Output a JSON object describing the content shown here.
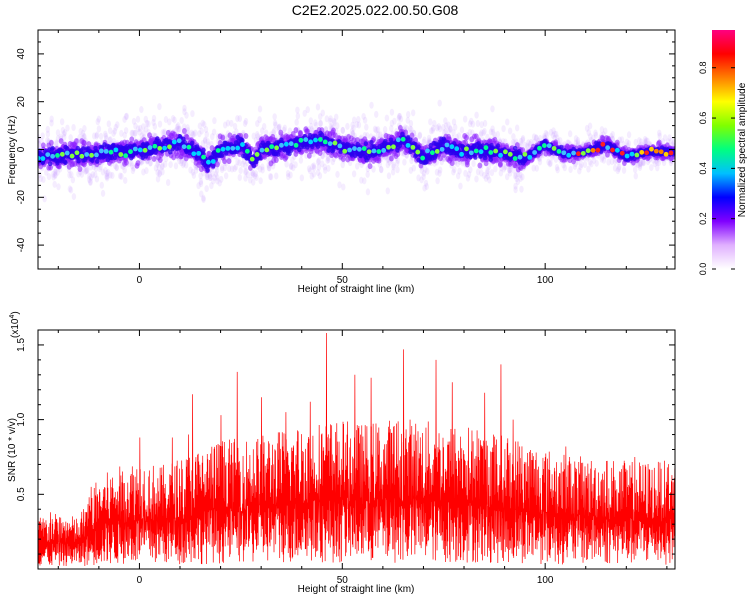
{
  "title": "C2E2.2025.022.00.50.G08",
  "chart_data": [
    {
      "type": "heatmap",
      "xlabel": "Height of straight line (km)",
      "ylabel": "Frequency (Hz)",
      "xlim": [
        -25,
        132
      ],
      "ylim": [
        -50,
        50
      ],
      "xticks": [
        0,
        50,
        100
      ],
      "yticks": [
        -40,
        -20,
        0,
        20,
        40
      ],
      "colorbar": {
        "label": "Normalized spectral amplitude",
        "range": [
          0.0,
          0.95
        ],
        "ticks": [
          0.0,
          0.2,
          0.4,
          0.6,
          0.8
        ],
        "colormap": [
          "#ffffff",
          "#e0b0ff",
          "#8000ff",
          "#0000ff",
          "#00c0ff",
          "#00ff80",
          "#80ff00",
          "#ffff00",
          "#ff8000",
          "#ff0000",
          "#ff0080"
        ]
      },
      "ridge_center_hz": [
        [
          -25,
          -3
        ],
        [
          -15,
          -2
        ],
        [
          -5,
          -1
        ],
        [
          0,
          0
        ],
        [
          5,
          1
        ],
        [
          10,
          3
        ],
        [
          15,
          -2
        ],
        [
          17,
          -6
        ],
        [
          20,
          0
        ],
        [
          25,
          2
        ],
        [
          28,
          -5
        ],
        [
          30,
          0
        ],
        [
          35,
          1
        ],
        [
          40,
          3
        ],
        [
          45,
          4
        ],
        [
          50,
          1
        ],
        [
          55,
          -1
        ],
        [
          60,
          0
        ],
        [
          65,
          4
        ],
        [
          70,
          -3
        ],
        [
          75,
          2
        ],
        [
          80,
          -1
        ],
        [
          85,
          0
        ],
        [
          90,
          -2
        ],
        [
          95,
          -4
        ],
        [
          100,
          2
        ],
        [
          105,
          -2
        ],
        [
          110,
          -1
        ],
        [
          115,
          2
        ],
        [
          120,
          -3
        ],
        [
          125,
          -1
        ],
        [
          132,
          -1
        ]
      ]
    },
    {
      "type": "line",
      "xlabel": "Height of straight line (km)",
      "ylabel": "SNR (10 * v/v)",
      "yscale_note": "(x10",
      "yscale_exp": "4",
      "xlim": [
        -25,
        132
      ],
      "ylim": [
        0,
        1.6
      ],
      "xticks": [
        0,
        50,
        100
      ],
      "yticks": [
        0.5,
        1.0,
        1.5
      ],
      "ytick_labels": [
        "0.5",
        "1.0",
        "1.5"
      ],
      "series": [
        {
          "color": "#ff0000",
          "envelope": [
            [
              -25,
              0.28
            ],
            [
              -20,
              0.3
            ],
            [
              -15,
              0.28
            ],
            [
              -10,
              0.5
            ],
            [
              -5,
              0.55
            ],
            [
              0,
              0.6
            ],
            [
              5,
              0.55
            ],
            [
              10,
              0.6
            ],
            [
              15,
              0.65
            ],
            [
              20,
              0.7
            ],
            [
              25,
              0.7
            ],
            [
              30,
              0.72
            ],
            [
              35,
              0.75
            ],
            [
              40,
              0.78
            ],
            [
              45,
              0.8
            ],
            [
              50,
              0.8
            ],
            [
              55,
              0.78
            ],
            [
              60,
              0.8
            ],
            [
              65,
              0.82
            ],
            [
              70,
              0.8
            ],
            [
              75,
              0.78
            ],
            [
              80,
              0.78
            ],
            [
              85,
              0.75
            ],
            [
              90,
              0.72
            ],
            [
              95,
              0.7
            ],
            [
              100,
              0.65
            ],
            [
              105,
              0.62
            ],
            [
              110,
              0.6
            ],
            [
              115,
              0.6
            ],
            [
              120,
              0.58
            ],
            [
              125,
              0.58
            ],
            [
              132,
              0.58
            ]
          ],
          "peaks": [
            [
              -22,
              0.38
            ],
            [
              -12,
              0.55
            ],
            [
              0,
              0.88
            ],
            [
              8,
              0.88
            ],
            [
              12,
              0.9
            ],
            [
              13,
              1.17
            ],
            [
              20,
              1.03
            ],
            [
              24,
              1.32
            ],
            [
              30,
              1.15
            ],
            [
              36,
              1.05
            ],
            [
              42,
              1.12
            ],
            [
              46,
              1.58
            ],
            [
              53,
              1.3
            ],
            [
              57,
              1.28
            ],
            [
              65,
              1.47
            ],
            [
              73,
              1.4
            ],
            [
              77,
              1.25
            ],
            [
              85,
              1.18
            ],
            [
              89,
              1.37
            ],
            [
              92,
              1.0
            ],
            [
              105,
              0.82
            ],
            [
              122,
              0.75
            ],
            [
              130,
              0.68
            ]
          ]
        }
      ]
    }
  ]
}
